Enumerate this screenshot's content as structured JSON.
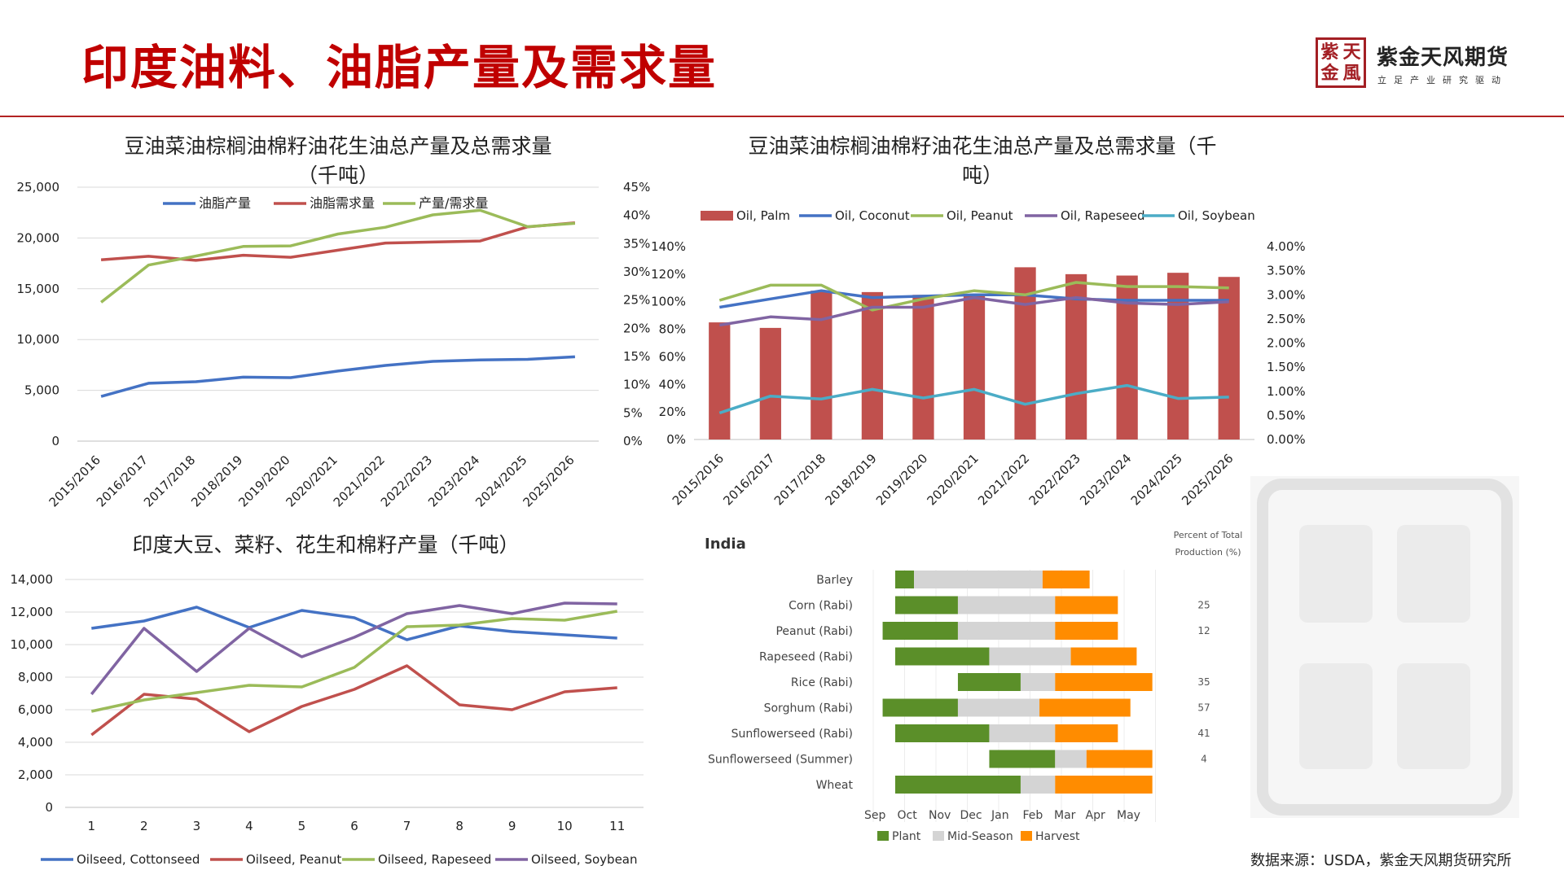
{
  "page": {
    "title": "印度油料、油脂产量及需求量",
    "logo_seal": [
      "紫",
      "天",
      "金",
      "風"
    ],
    "logo_name": "紫金天风期货",
    "logo_sub": "立足产业研究驱动",
    "source": "数据来源：USDA，紫金天风期货研究所"
  },
  "chart_data": [
    {
      "type": "line",
      "title": "豆油菜油棕榈油棉籽油花生油总产量及总需求量（千吨）",
      "title_lines": [
        "豆油菜油棕榈油棉籽油花生油总产量及总需求量",
        "（千吨）"
      ],
      "categories": [
        "2015/2016",
        "2016/2017",
        "2017/2018",
        "2018/2019",
        "2019/2020",
        "2020/2021",
        "2021/2022",
        "2022/2023",
        "2023/2024",
        "2024/2025",
        "2025/2026"
      ],
      "ylim": [
        0,
        25000
      ],
      "yticks": [
        "0",
        "5,000",
        "10,000",
        "15,000",
        "20,000",
        "25,000"
      ],
      "y2lim": [
        0,
        45
      ],
      "y2ticks": [
        "0%",
        "5%",
        "10%",
        "15%",
        "20%",
        "25%",
        "30%",
        "35%",
        "40%",
        "45%"
      ],
      "legend": "top",
      "series": [
        {
          "name": "油脂产量",
          "axis": "left",
          "color": "#4472c4",
          "values": [
            4400,
            5700,
            5850,
            6300,
            6250,
            6900,
            7450,
            7850,
            8000,
            8050,
            8300
          ]
        },
        {
          "name": "油脂需求量",
          "axis": "left",
          "color": "#c0504d",
          "values": [
            17850,
            18200,
            17800,
            18300,
            18100,
            18800,
            19500,
            19600,
            19700,
            21100,
            21500
          ]
        },
        {
          "name": "产量/需求量",
          "axis": "right",
          "color": "#9bbb59",
          "values": [
            24.6,
            31.2,
            32.8,
            34.5,
            34.6,
            36.7,
            37.9,
            40.1,
            40.9,
            38.0,
            38.6
          ]
        }
      ]
    },
    {
      "type": "bar",
      "title": "豆油菜油棕榈油棉籽油花生油总产量及总需求量（千吨）",
      "title_lines": [
        "豆油菜油棕榈油棉籽油花生油总产量及总需求量（千",
        "吨）"
      ],
      "categories": [
        "2015/2016",
        "2016/2017",
        "2017/2018",
        "2018/2019",
        "2019/2020",
        "2020/2021",
        "2021/2022",
        "2022/2023",
        "2023/2024",
        "2024/2025",
        "2025/2026"
      ],
      "ylim": [
        0,
        140
      ],
      "yticks": [
        "0%",
        "20%",
        "40%",
        "60%",
        "80%",
        "100%",
        "120%",
        "140%"
      ],
      "y2lim": [
        0,
        4
      ],
      "y2ticks": [
        "0.00%",
        "0.50%",
        "1.00%",
        "1.50%",
        "2.00%",
        "2.50%",
        "3.00%",
        "3.50%",
        "4.00%"
      ],
      "legend": "top",
      "series": [
        {
          "name": "Oil, Palm",
          "kind": "bar",
          "axis": "left",
          "color": "#c0504d",
          "values": [
            85,
            81,
            108,
            107,
            105,
            104,
            125,
            120,
            119,
            121,
            118
          ]
        },
        {
          "name": "Oil, Coconut",
          "kind": "line",
          "axis": "left",
          "color": "#4472c4",
          "values": [
            96,
            102,
            108,
            103,
            104,
            105,
            105,
            102,
            101,
            101,
            101
          ]
        },
        {
          "name": "Oil, Peanut",
          "kind": "line",
          "axis": "left",
          "color": "#9bbb59",
          "values": [
            101,
            112,
            112,
            94,
            102,
            108,
            105,
            114,
            111,
            111,
            110
          ]
        },
        {
          "name": "Oil, Rapeseed",
          "kind": "line",
          "axis": "left",
          "color": "#8064a2",
          "values": [
            83,
            89,
            87,
            96,
            96,
            103,
            98,
            103,
            99,
            98,
            100
          ]
        },
        {
          "name": "Oil, Soybean",
          "kind": "line",
          "axis": "right",
          "color": "#4bacc6",
          "values": [
            0.55,
            0.9,
            0.84,
            1.04,
            0.86,
            1.04,
            0.73,
            0.95,
            1.12,
            0.85,
            0.88
          ]
        }
      ]
    },
    {
      "type": "line",
      "title": "印度大豆、菜籽、花生和棉籽产量（千吨）",
      "categories": [
        "1",
        "2",
        "3",
        "4",
        "5",
        "6",
        "7",
        "8",
        "9",
        "10",
        "11"
      ],
      "ylim": [
        0,
        14000
      ],
      "yticks": [
        "0",
        "2,000",
        "4,000",
        "6,000",
        "8,000",
        "10,000",
        "12,000",
        "14,000"
      ],
      "legend": "bottom",
      "series": [
        {
          "name": "Oilseed, Cottonseed",
          "color": "#4472c4",
          "values": [
            11000,
            11450,
            12300,
            11050,
            12100,
            11650,
            10300,
            11150,
            10800,
            10600,
            10400
          ]
        },
        {
          "name": "Oilseed, Peanut",
          "color": "#c0504d",
          "values": [
            4450,
            6950,
            6650,
            4650,
            6200,
            7250,
            8700,
            6300,
            6000,
            7100,
            7350
          ]
        },
        {
          "name": "Oilseed, Rapeseed",
          "color": "#9bbb59",
          "values": [
            5900,
            6600,
            7050,
            7500,
            7400,
            8600,
            11100,
            11200,
            11600,
            11500,
            12050
          ]
        },
        {
          "name": "Oilseed, Soybean",
          "color": "#8064a2",
          "values": [
            6950,
            11000,
            8350,
            11000,
            9250,
            10450,
            11900,
            12400,
            11900,
            12550,
            12500
          ]
        }
      ]
    },
    {
      "type": "gantt",
      "title": "India",
      "pct_header": [
        "Percent of Total",
        "Production (%)"
      ],
      "months": [
        "Sep",
        "Oct",
        "Nov",
        "Dec",
        "Jan",
        "Feb",
        "Mar",
        "Apr",
        "May"
      ],
      "legend": [
        {
          "name": "Plant",
          "color": "#5b8f29"
        },
        {
          "name": "Mid-Season",
          "color": "#d4d4d4"
        },
        {
          "name": "Harvest",
          "color": "#ff8c00"
        }
      ],
      "crops": [
        {
          "name": "Barley",
          "pct": "",
          "plant": [
            0.7,
            1.3
          ],
          "mid": [
            1.3,
            5.4
          ],
          "harvest": [
            5.4,
            6.9
          ]
        },
        {
          "name": "Corn (Rabi)",
          "pct": "25",
          "plant": [
            0.7,
            2.7
          ],
          "mid": [
            2.7,
            5.8
          ],
          "harvest": [
            5.8,
            7.8
          ]
        },
        {
          "name": "Peanut (Rabi)",
          "pct": "12",
          "plant": [
            0.3,
            2.7
          ],
          "mid": [
            2.7,
            5.8
          ],
          "harvest": [
            5.8,
            7.8
          ]
        },
        {
          "name": "Rapeseed (Rabi)",
          "pct": "",
          "plant": [
            0.7,
            3.7
          ],
          "mid": [
            3.7,
            6.3
          ],
          "harvest": [
            6.3,
            8.4
          ]
        },
        {
          "name": "Rice (Rabi)",
          "pct": "35",
          "plant": [
            2.7,
            4.7
          ],
          "mid": [
            4.7,
            5.8
          ],
          "harvest": [
            5.8,
            8.9
          ]
        },
        {
          "name": "Sorghum (Rabi)",
          "pct": "57",
          "plant": [
            0.3,
            2.7
          ],
          "mid": [
            2.7,
            5.3
          ],
          "harvest": [
            5.3,
            8.2
          ]
        },
        {
          "name": "Sunflowerseed (Rabi)",
          "pct": "41",
          "plant": [
            0.7,
            3.7
          ],
          "mid": [
            3.7,
            5.8
          ],
          "harvest": [
            5.8,
            7.8
          ]
        },
        {
          "name": "Sunflowerseed (Summer)",
          "pct": "4",
          "plant": [
            3.7,
            5.8
          ],
          "mid": [
            5.8,
            6.8
          ],
          "harvest": [
            6.8,
            8.9
          ]
        },
        {
          "name": "Wheat",
          "pct": "",
          "plant": [
            0.7,
            4.7
          ],
          "mid": [
            4.7,
            5.8
          ],
          "harvest": [
            5.8,
            8.9
          ]
        }
      ]
    }
  ]
}
